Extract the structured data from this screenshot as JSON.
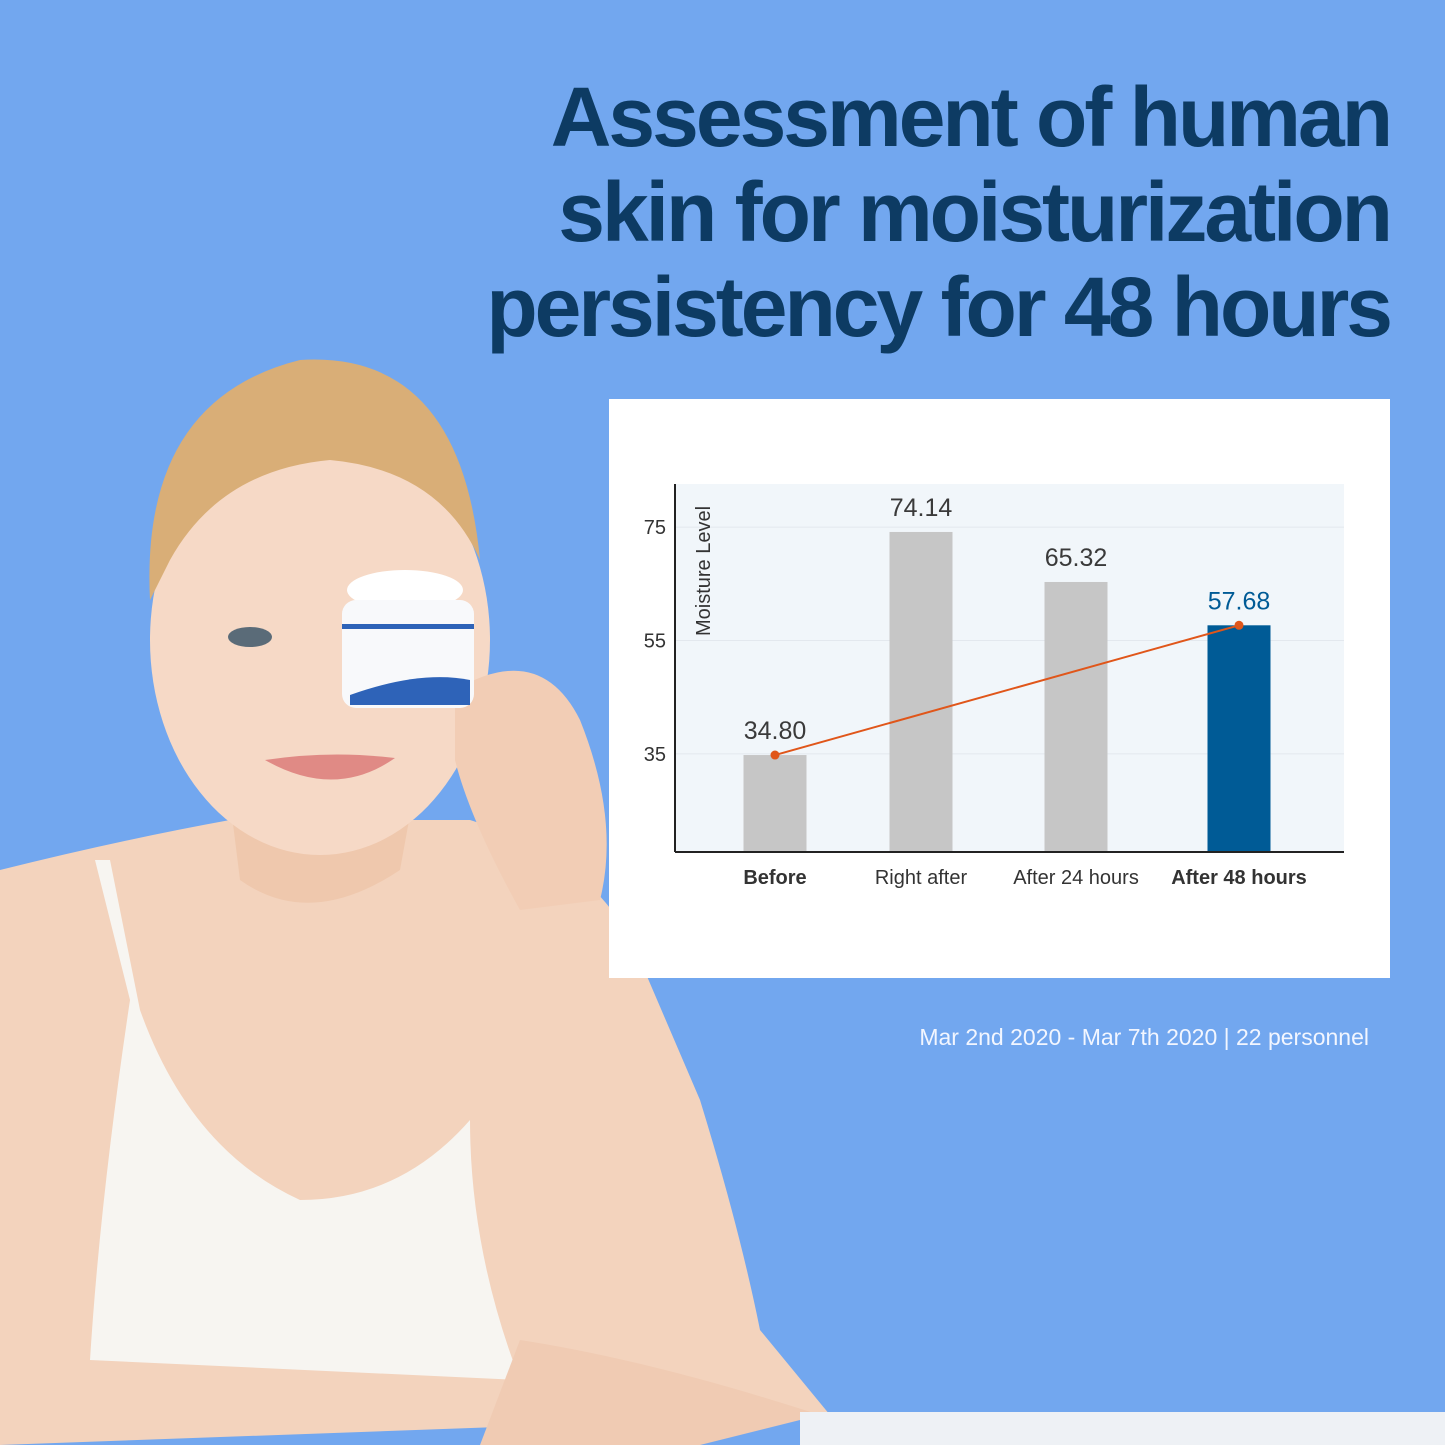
{
  "title": "Assessment of human skin for moisturization persistency for 48 hours",
  "footnote": "Mar 2nd 2020 - Mar 7th 2020 | 22 personnel",
  "colors": {
    "background": "#72a7ef",
    "title": "#0d3b63",
    "bar_default": "#c6c6c6",
    "bar_highlight": "#005b96",
    "trend_line": "#e0561a",
    "plot_bg": "#f1f6fa"
  },
  "chart_data": {
    "type": "bar",
    "title": "",
    "xlabel": "",
    "ylabel": "Moisture Level",
    "categories": [
      "Before",
      "Right after",
      "After 24 hours",
      "After 48 hours"
    ],
    "values": [
      34.8,
      74.14,
      65.32,
      57.68
    ],
    "value_labels": [
      "34.80",
      "74.14",
      "65.32",
      "57.68"
    ],
    "highlight_category": "After 48 hours",
    "bold_categories": [
      "Before",
      "After 48 hours"
    ],
    "yticks": [
      35,
      55,
      75
    ],
    "ylim": [
      17.7,
      82.6
    ],
    "grid": true,
    "trend_line": {
      "from": "Before",
      "to": "After 48 hours",
      "values": [
        34.8,
        57.68
      ]
    }
  }
}
